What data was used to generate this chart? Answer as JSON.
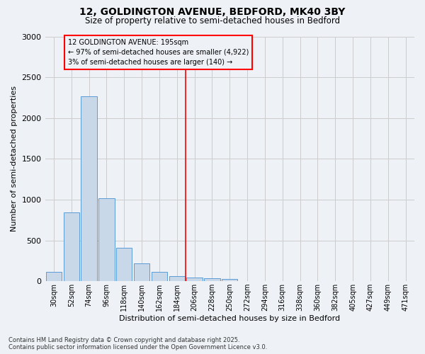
{
  "title_line1": "12, GOLDINGTON AVENUE, BEDFORD, MK40 3BY",
  "title_line2": "Size of property relative to semi-detached houses in Bedford",
  "xlabel": "Distribution of semi-detached houses by size in Bedford",
  "ylabel": "Number of semi-detached properties",
  "categories": [
    "30sqm",
    "52sqm",
    "74sqm",
    "96sqm",
    "118sqm",
    "140sqm",
    "162sqm",
    "184sqm",
    "206sqm",
    "228sqm",
    "250sqm",
    "272sqm",
    "294sqm",
    "316sqm",
    "338sqm",
    "360sqm",
    "382sqm",
    "405sqm",
    "427sqm",
    "449sqm",
    "471sqm"
  ],
  "values": [
    110,
    840,
    2270,
    1020,
    410,
    220,
    110,
    65,
    45,
    38,
    28,
    5,
    0,
    0,
    0,
    0,
    0,
    0,
    0,
    0,
    0
  ],
  "bar_color": "#c8d8e8",
  "bar_edge_color": "#5b9bd5",
  "grid_color": "#cccccc",
  "vline_x": 8.0,
  "vline_color": "red",
  "annotation_title": "12 GOLDINGTON AVENUE: 195sqm",
  "annotation_line2": "← 97% of semi-detached houses are smaller (4,922)",
  "annotation_line3": "3% of semi-detached houses are larger (140) →",
  "annotation_box_color": "red",
  "ylim": [
    0,
    3000
  ],
  "yticks": [
    0,
    500,
    1000,
    1500,
    2000,
    2500,
    3000
  ],
  "footer_line1": "Contains HM Land Registry data © Crown copyright and database right 2025.",
  "footer_line2": "Contains public sector information licensed under the Open Government Licence v3.0.",
  "bg_color": "#eef2f7"
}
